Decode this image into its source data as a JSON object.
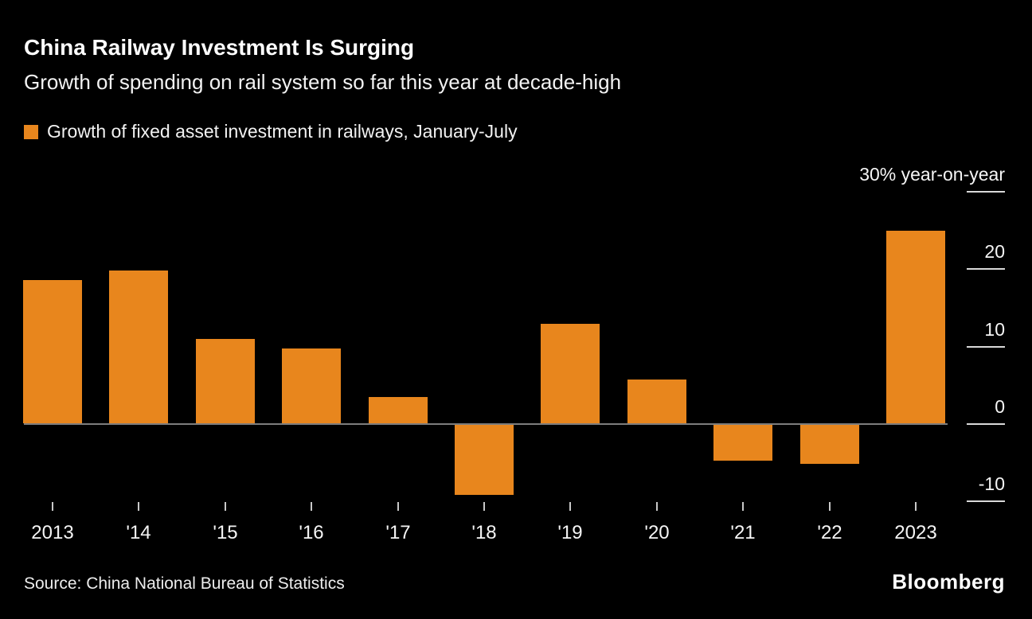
{
  "title": "China Railway Investment Is Surging",
  "subtitle": "Growth of spending on rail system so far this year at decade-high",
  "legend": {
    "label": "Growth of fixed asset investment in railways, January-July"
  },
  "source": "Source: China National Bureau of Statistics",
  "brand": "Bloomberg",
  "colors": {
    "background": "#000000",
    "bar": "#E8861D",
    "text": "#FFFFFF",
    "muted_text": "#F2F2F2",
    "zero_line": "#7D7D7D",
    "tick": "#D9D9D9"
  },
  "chart_data": {
    "type": "bar",
    "title": "Growth of fixed asset investment in railways, January-July",
    "categories": [
      "2013",
      "'14",
      "'15",
      "'16",
      "'17",
      "'18",
      "'19",
      "'20",
      "'21",
      "'22",
      "2023"
    ],
    "values": [
      18.5,
      19.7,
      10.9,
      9.7,
      3.4,
      -9.0,
      12.8,
      5.7,
      -4.6,
      -5.0,
      24.9
    ],
    "unit": "% year-on-year",
    "ylim": [
      -13,
      30
    ],
    "yticks": [
      30,
      20,
      10,
      0,
      -10
    ],
    "ytick_labels": [
      "30% year-on-year",
      "20",
      "10",
      "0",
      "-10"
    ],
    "axis_side": "right",
    "grid": false,
    "legend_position": "top-left",
    "bar_color": "#E8861D"
  }
}
